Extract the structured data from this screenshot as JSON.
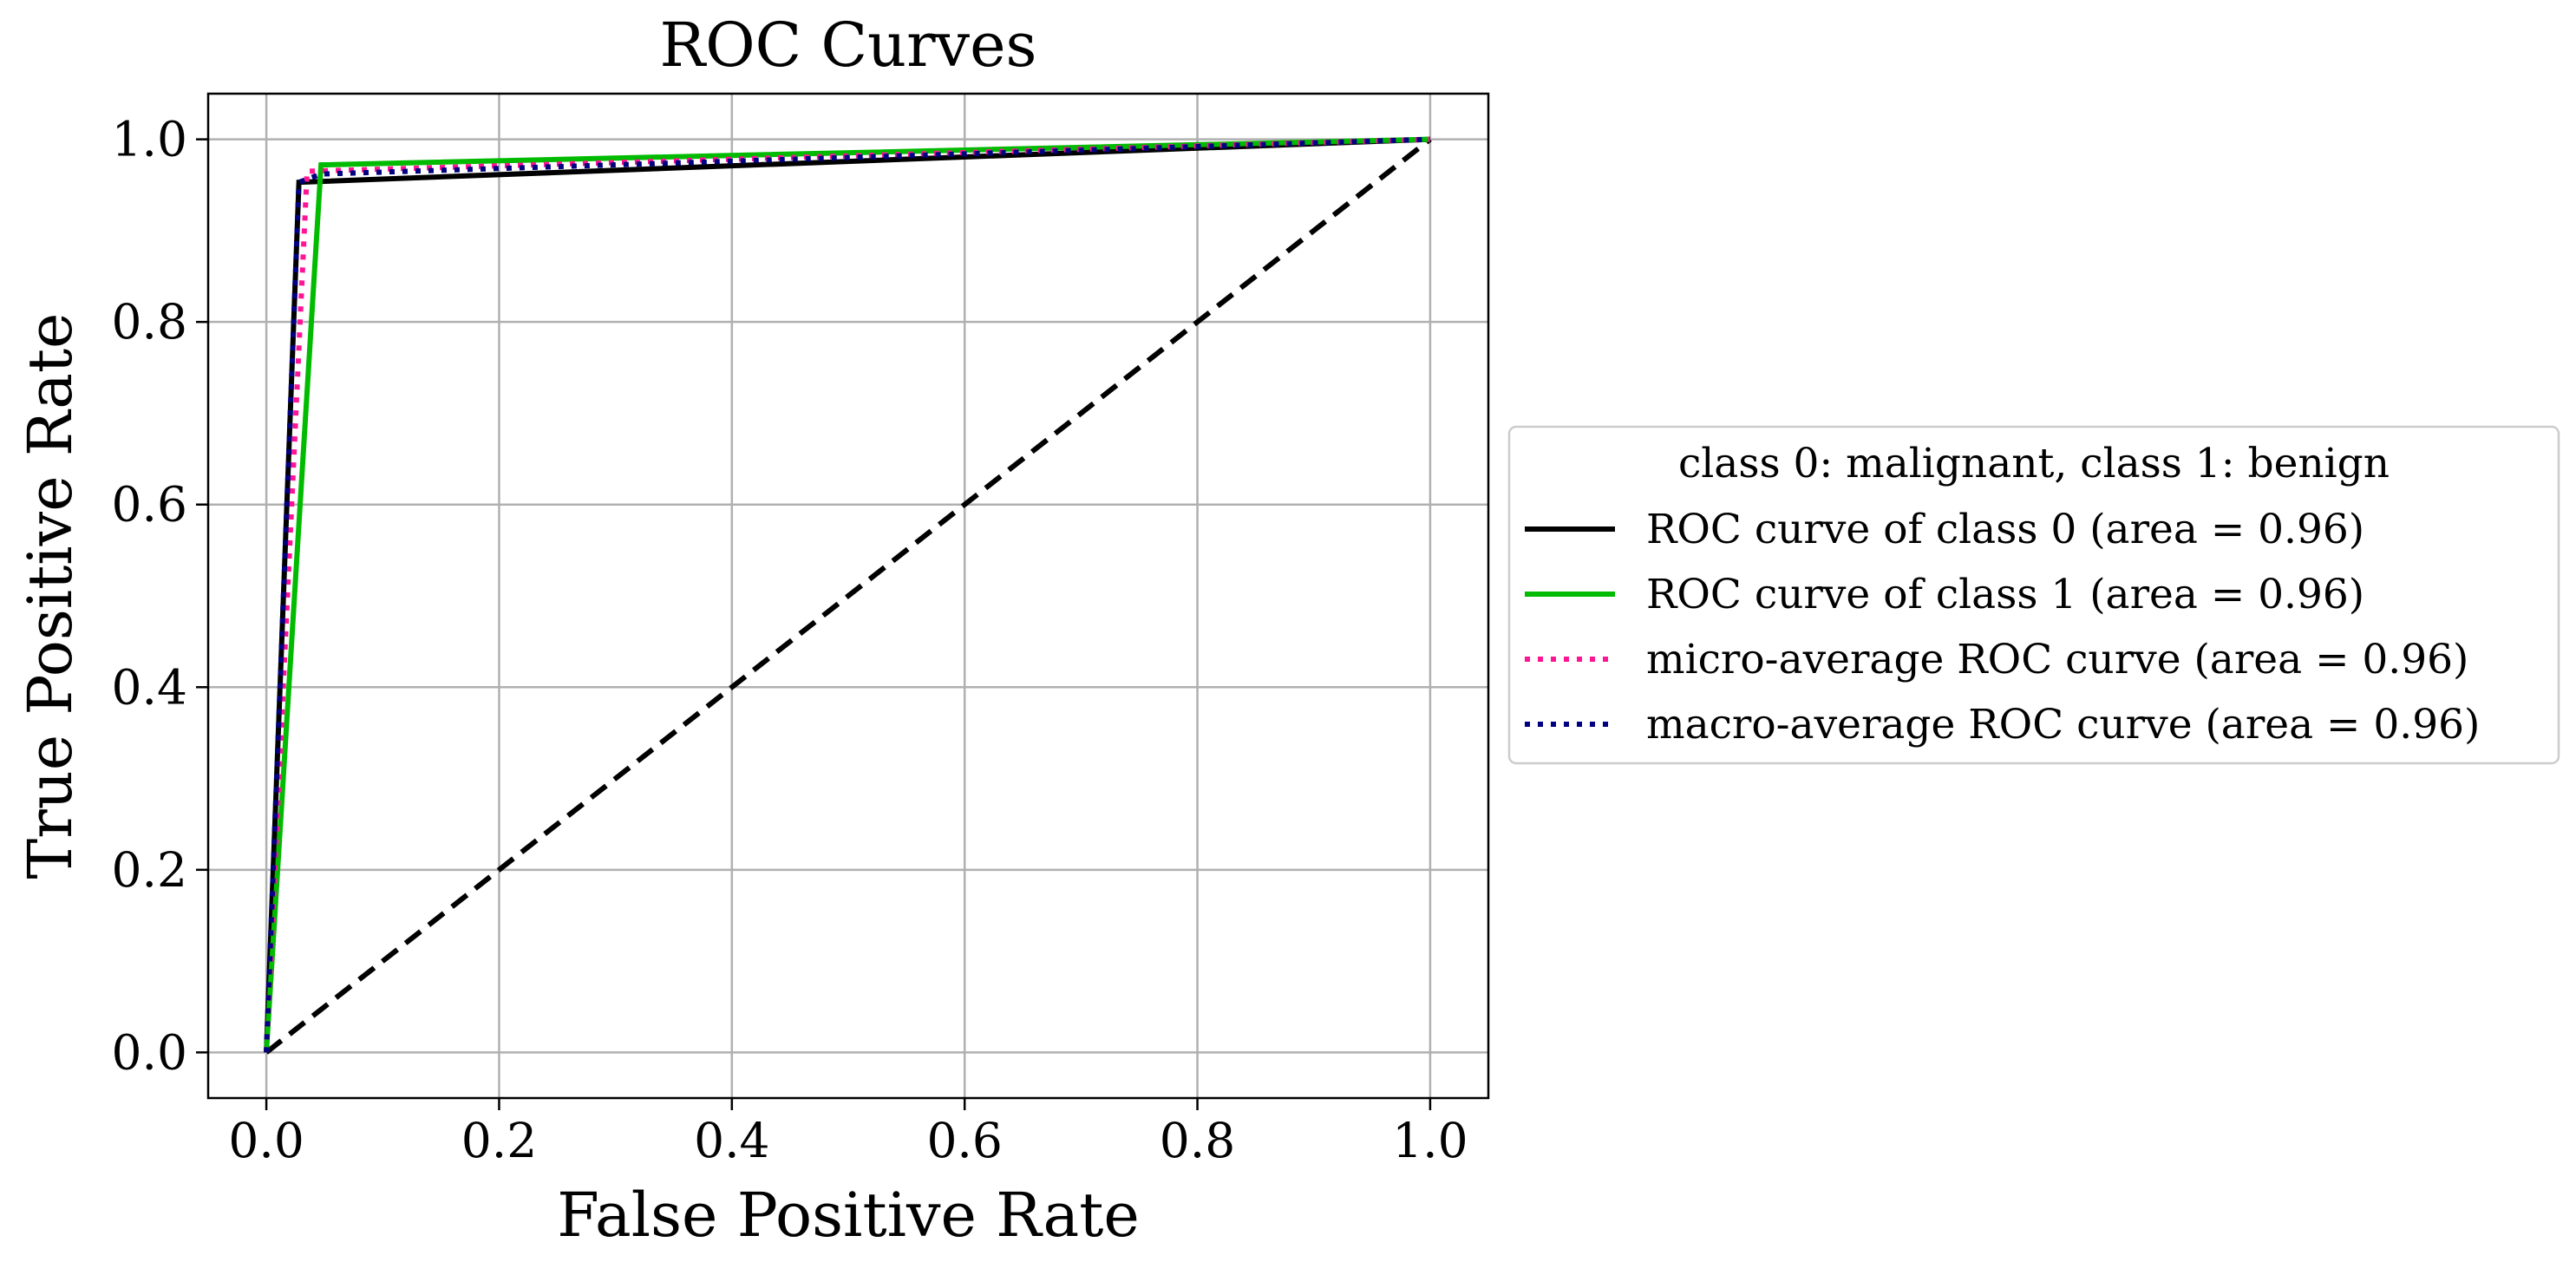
{
  "chart_data": {
    "type": "line",
    "title": "ROC Curves",
    "xlabel": "False Positive Rate",
    "ylabel": "True Positive Rate",
    "xlim": [
      -0.05,
      1.05
    ],
    "ylim": [
      -0.05,
      1.05
    ],
    "grid": true,
    "legend_position": "outside right",
    "xticks": [
      0.0,
      0.2,
      0.4,
      0.6,
      0.8,
      1.0
    ],
    "yticks": [
      0.0,
      0.2,
      0.4,
      0.6,
      0.8,
      1.0
    ],
    "xtick_labels": [
      "0.0",
      "0.2",
      "0.4",
      "0.6",
      "0.8",
      "1.0"
    ],
    "ytick_labels": [
      "0.0",
      "0.2",
      "0.4",
      "0.6",
      "0.8",
      "1.0"
    ],
    "legend_title": "class 0: malignant, class 1: benign",
    "series": [
      {
        "name": "ROC curve of class 0 (area = 0.96)",
        "color": "#000000",
        "style": "solid",
        "x": [
          0.0,
          0.028,
          1.0
        ],
        "y": [
          0.0,
          0.953,
          1.0
        ]
      },
      {
        "name": "ROC curve of class 1 (area = 0.96)",
        "color": "#00bb00",
        "style": "solid",
        "x": [
          0.0,
          0.047,
          1.0
        ],
        "y": [
          0.0,
          0.972,
          1.0
        ]
      },
      {
        "name": "micro-average ROC curve (area = 0.96)",
        "color": "#ff1493",
        "style": "dotted",
        "x": [
          0.0,
          0.035,
          1.0
        ],
        "y": [
          0.0,
          0.965,
          1.0
        ]
      },
      {
        "name": "macro-average ROC curve (area = 0.96)",
        "color": "#000080",
        "style": "dotted",
        "x": [
          0.0,
          0.028,
          0.047,
          1.0
        ],
        "y": [
          0.0,
          0.953,
          0.962,
          1.0
        ]
      }
    ],
    "reference_line": {
      "x": [
        0.0,
        1.0
      ],
      "y": [
        0.0,
        1.0
      ],
      "color": "#000000",
      "style": "dashed"
    }
  }
}
